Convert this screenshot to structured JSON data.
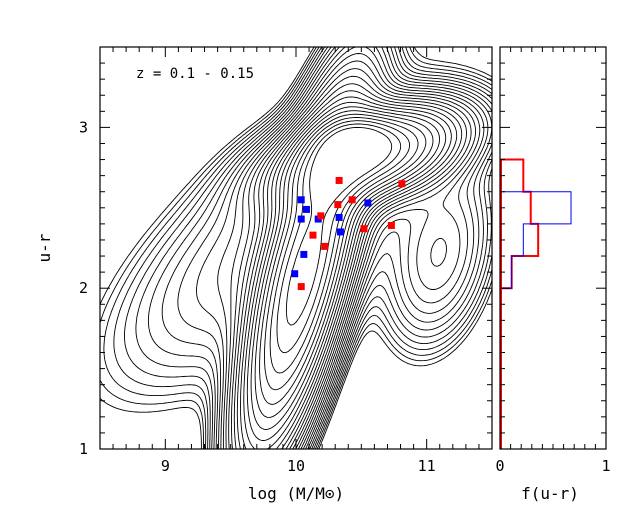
{
  "chart_data": [
    {
      "type": "scatter",
      "title": "",
      "annotation": "z = 0.1 - 0.15",
      "xlabel": "log (M/M⊙)",
      "ylabel": "u-r",
      "xlim": [
        8.5,
        11.5
      ],
      "ylim": [
        1,
        3.5
      ],
      "xticks": [
        9,
        10,
        11
      ],
      "xtick_labels": [
        "9",
        "10",
        "11"
      ],
      "yticks": [
        1,
        2,
        3
      ],
      "ytick_labels": [
        "1",
        "2",
        "3"
      ],
      "grid": false,
      "background": "density contours of the galaxy population",
      "series": [
        {
          "color": "#0000ff",
          "points": [
            {
              "x": 10.04,
              "y": 2.55
            },
            {
              "x": 10.08,
              "y": 2.49
            },
            {
              "x": 10.04,
              "y": 2.43
            },
            {
              "x": 10.17,
              "y": 2.43
            },
            {
              "x": 10.06,
              "y": 2.21
            },
            {
              "x": 9.99,
              "y": 2.09
            },
            {
              "x": 10.33,
              "y": 2.44
            },
            {
              "x": 10.34,
              "y": 2.35
            },
            {
              "x": 10.55,
              "y": 2.53
            }
          ]
        },
        {
          "color": "#ff0000",
          "points": [
            {
              "x": 10.33,
              "y": 2.67
            },
            {
              "x": 10.32,
              "y": 2.52
            },
            {
              "x": 10.43,
              "y": 2.55
            },
            {
              "x": 10.19,
              "y": 2.45
            },
            {
              "x": 10.13,
              "y": 2.33
            },
            {
              "x": 10.22,
              "y": 2.26
            },
            {
              "x": 10.04,
              "y": 2.01
            },
            {
              "x": 10.52,
              "y": 2.37
            },
            {
              "x": 10.73,
              "y": 2.39
            },
            {
              "x": 10.81,
              "y": 2.65
            }
          ]
        }
      ]
    },
    {
      "type": "line",
      "title": "",
      "xlabel": "f(u-r)",
      "ylabel": "",
      "xlim": [
        0,
        1
      ],
      "ylim": [
        1,
        3.5
      ],
      "xticks": [
        0,
        1
      ],
      "xtick_labels": [
        "0",
        "1"
      ],
      "step_histogram": true,
      "series": [
        {
          "color": "#ff0000",
          "bins": [
            {
              "y0": 2.0,
              "y1": 2.2,
              "f": 0.11
            },
            {
              "y0": 2.2,
              "y1": 2.4,
              "f": 0.36
            },
            {
              "y0": 2.4,
              "y1": 2.6,
              "f": 0.29
            },
            {
              "y0": 2.6,
              "y1": 2.8,
              "f": 0.22
            }
          ]
        },
        {
          "color": "#0000ff",
          "bins": [
            {
              "y0": 2.0,
              "y1": 2.2,
              "f": 0.11
            },
            {
              "y0": 2.2,
              "y1": 2.4,
              "f": 0.22
            },
            {
              "y0": 2.4,
              "y1": 2.6,
              "f": 0.67
            }
          ]
        }
      ]
    }
  ]
}
